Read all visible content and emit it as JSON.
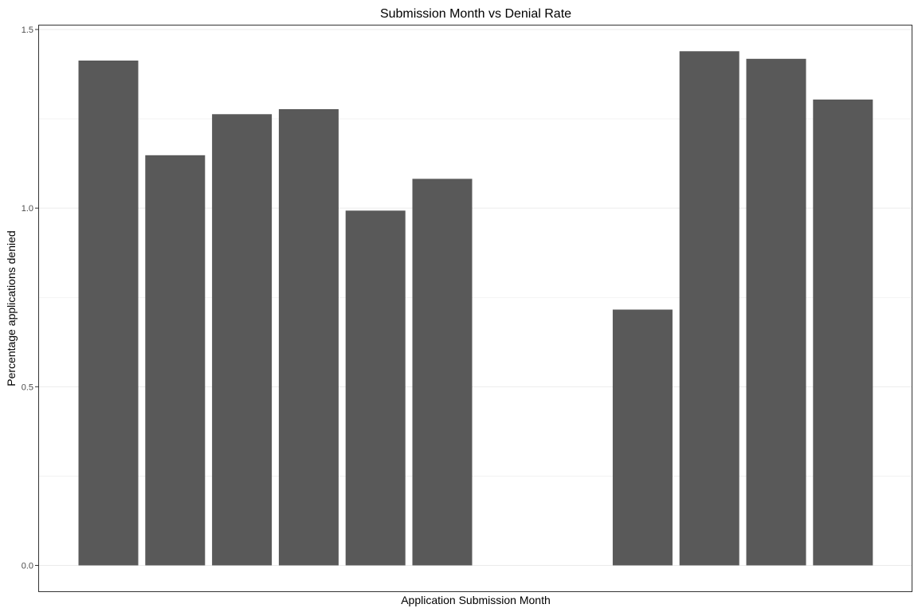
{
  "chart_data": {
    "type": "bar",
    "title": "Submission Month vs Denial Rate",
    "xlabel": "Application Submission Month",
    "ylabel": "Percentage applications denied",
    "categories": [
      "",
      "",
      "",
      "",
      "",
      "",
      "",
      "",
      "",
      "",
      "",
      ""
    ],
    "values": [
      1.413,
      1.148,
      1.263,
      1.277,
      0.993,
      1.082,
      0,
      0,
      0.716,
      1.439,
      1.418,
      1.304
    ],
    "ylim": [
      -0.075,
      1.51
    ],
    "yticks": [
      0.0,
      0.5,
      1.0,
      1.5
    ],
    "ytick_labels": [
      "0.0",
      "0.5",
      "1.0",
      "1.5"
    ],
    "x_tick_labels_visible": false,
    "grid": true,
    "legend": "none"
  },
  "colors": {
    "bar": "#595959",
    "grid": "#ebebeb",
    "panel_border": "#333333",
    "tick_text": "#4d4d4d",
    "background": "#ffffff"
  }
}
